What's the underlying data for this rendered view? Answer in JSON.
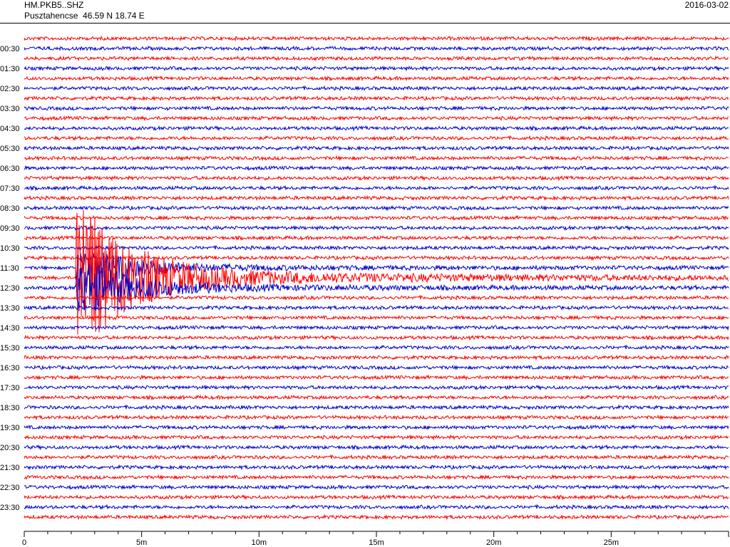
{
  "header": {
    "station_code": "HM.PKB5..SHZ",
    "location": "Pusztahencse  46.59 N 18.74 E",
    "date": "2016-03-02"
  },
  "colors": {
    "odd_trace": "#ff0000",
    "even_trace": "#0000cc",
    "axis": "#000000"
  },
  "chart_data": {
    "type": "line",
    "subtype": "helicorder",
    "title": "",
    "rows": 49,
    "row_labels": [
      "00:30",
      "01:30",
      "02:30",
      "03:30",
      "04:30",
      "05:30",
      "06:30",
      "07:30",
      "08:30",
      "09:30",
      "10:30",
      "11:30",
      "12:30",
      "13:30",
      "14:30",
      "15:30",
      "16:30",
      "17:30",
      "18:30",
      "19:30",
      "20:30",
      "21:30",
      "22:30",
      "23:30"
    ],
    "x_axis": {
      "unit": "minutes",
      "range": [
        0,
        30
      ],
      "ticks": [
        0,
        5,
        10,
        15,
        20,
        25
      ],
      "tick_labels": [
        "0",
        "5m",
        "10m",
        "15m",
        "20m",
        "25m"
      ]
    },
    "event": {
      "description_visible": false,
      "row_onset": 24,
      "onset_minute": 2.2,
      "peak_minute": 2.6,
      "coda_end_minute": 30
    }
  }
}
